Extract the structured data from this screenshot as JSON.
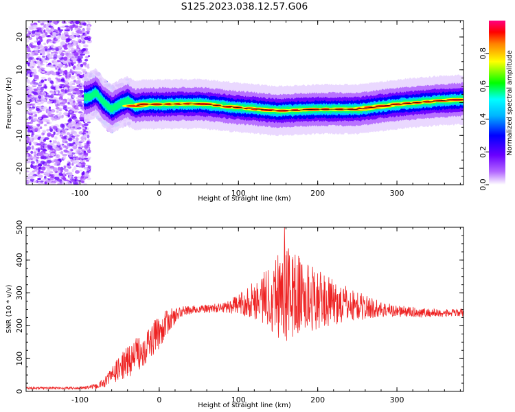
{
  "title": "S125.2023.038.12.57.G06",
  "chart_data": [
    {
      "type": "heatmap",
      "xlabel": "Height of straight line (km)",
      "ylabel": "Frequency (Hz)",
      "xlim": [
        -168,
        384
      ],
      "ylim": [
        -25,
        25
      ],
      "x_ticks": [
        -100,
        0,
        100,
        200,
        300
      ],
      "y_ticks": [
        -20,
        -10,
        0,
        10,
        20
      ],
      "colorbar": {
        "label": "Normalized spectral amplitude",
        "range": [
          0,
          1
        ],
        "ticks": [
          "0.0",
          "0.2",
          "0.4",
          "0.6",
          "0.8"
        ],
        "colors": [
          "#ffffff",
          "#8000ff",
          "#0000ff",
          "#00ffff",
          "#00ff00",
          "#ffff00",
          "#ff0000",
          "#ff0080"
        ]
      },
      "ridge": {
        "x": [
          -90,
          -80,
          -70,
          -60,
          -50,
          -40,
          -30,
          -20,
          0,
          50,
          100,
          150,
          200,
          250,
          300,
          350,
          384
        ],
        "frequency": [
          1.5,
          3.0,
          0.0,
          -2.0,
          -0.5,
          0.5,
          -1.0,
          -0.5,
          -0.5,
          -0.3,
          -1.5,
          -2.5,
          -2.0,
          -2.0,
          -0.5,
          0.5,
          1.0
        ]
      }
    },
    {
      "type": "line",
      "xlabel": "Height of straight line (km)",
      "ylabel": "SNR (10 * v/v)",
      "xlim": [
        -168,
        384
      ],
      "ylim": [
        0,
        500
      ],
      "x_ticks": [
        -100,
        0,
        100,
        200,
        300
      ],
      "y_ticks": [
        0,
        100,
        200,
        300,
        400,
        500
      ],
      "color": "#ee2222",
      "envelope_x": [
        -168,
        -100,
        -80,
        -70,
        -60,
        -40,
        -20,
        0,
        10,
        20,
        30,
        50,
        80,
        100,
        120,
        140,
        150,
        160,
        180,
        200,
        220,
        250,
        280,
        300,
        330,
        360,
        384
      ],
      "envelope_mean": [
        10,
        10,
        15,
        25,
        50,
        90,
        130,
        180,
        210,
        230,
        245,
        250,
        255,
        265,
        280,
        290,
        300,
        300,
        290,
        280,
        270,
        260,
        250,
        245,
        240,
        238,
        240
      ],
      "envelope_spread": [
        4,
        4,
        8,
        15,
        25,
        50,
        55,
        50,
        40,
        25,
        15,
        12,
        15,
        30,
        60,
        100,
        140,
        150,
        120,
        90,
        70,
        45,
        25,
        18,
        15,
        12,
        12
      ],
      "peak_max": 500,
      "peak_x": 158
    }
  ]
}
